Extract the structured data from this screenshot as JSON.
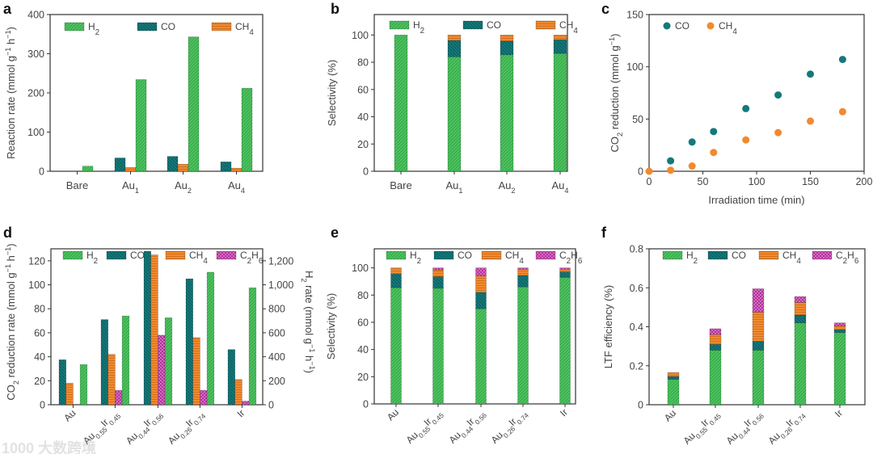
{
  "watermark": "1000 大数跨境",
  "colors": {
    "H2": "#4cc35e",
    "CO": "#13797a",
    "CH4": "#f28a2e",
    "C2H6": "#b3339d"
  },
  "chart_data": [
    {
      "panel": "a",
      "type": "bar",
      "mode": "grouped",
      "categories": [
        "Bare",
        "Au_{1}",
        "Au_{2}",
        "Au_{4}"
      ],
      "series": [
        {
          "name": "CO",
          "label": "CO",
          "values": [
            0,
            34,
            38,
            24
          ]
        },
        {
          "name": "CH4",
          "label": "CH_{4}",
          "values": [
            0,
            10,
            18,
            8
          ]
        },
        {
          "name": "H2",
          "label": "H_{2}",
          "values": [
            13,
            234,
            343,
            212
          ]
        }
      ],
      "legend_order": [
        "H2",
        "CO",
        "CH4"
      ],
      "xlabel": "",
      "ylabel": "Reaction rate (mmol g^{−1} h^{−1})",
      "ylim": [
        0,
        400
      ],
      "yticks": [
        "0",
        "100",
        "200",
        "300",
        "400"
      ],
      "ytick_values": [
        0,
        100,
        200,
        300,
        400
      ],
      "legend": "top"
    },
    {
      "panel": "b",
      "type": "bar",
      "mode": "stacked",
      "categories": [
        "Bare",
        "Au_{1}",
        "Au_{2}",
        "Au_{4}"
      ],
      "series": [
        {
          "name": "H2",
          "label": "H_{2}",
          "values": [
            100,
            84,
            85.5,
            86.5
          ]
        },
        {
          "name": "CO",
          "label": "CO",
          "values": [
            0,
            12,
            10,
            10
          ]
        },
        {
          "name": "CH4",
          "label": "CH_{4}",
          "values": [
            0,
            4,
            4.5,
            3.5
          ]
        }
      ],
      "legend_order": [
        "H2",
        "CO",
        "CH4"
      ],
      "xlabel": "",
      "ylabel": "Selectivity (%)",
      "ylim": [
        0,
        115
      ],
      "yticks": [
        "0",
        "20",
        "40",
        "60",
        "80",
        "100"
      ],
      "ytick_values": [
        0,
        20,
        40,
        60,
        80,
        100
      ],
      "legend": "top"
    },
    {
      "panel": "c",
      "type": "scatter",
      "series": [
        {
          "name": "CO",
          "label": "CO",
          "x": [
            20,
            40,
            60,
            90,
            120,
            150,
            180
          ],
          "y": [
            10,
            28,
            38,
            60,
            73,
            93,
            107
          ]
        },
        {
          "name": "CH4",
          "label": "CH_{4}",
          "x": [
            0,
            20,
            40,
            60,
            90,
            120,
            150,
            180
          ],
          "y": [
            0,
            1,
            5,
            18,
            30,
            37,
            48,
            57
          ]
        }
      ],
      "xlabel": "Irradiation time (min)",
      "ylabel": "CO_{2} reduction (mmol g^{−1})",
      "xlim": [
        0,
        200
      ],
      "xticks": [
        "0",
        "50",
        "100",
        "150",
        "200"
      ],
      "xtick_values": [
        0,
        50,
        100,
        150,
        200
      ],
      "ylim": [
        0,
        150
      ],
      "yticks": [
        "0",
        "50",
        "100",
        "150"
      ],
      "ytick_values": [
        0,
        50,
        100,
        150
      ],
      "legend": "top-left"
    },
    {
      "panel": "d",
      "type": "bar",
      "mode": "grouped",
      "categories": [
        "Au",
        "Au_{0.55}Ir_{0.45}",
        "Au_{0.44}Ir_{0.56}",
        "Au_{0.26}Ir_{0.74}",
        "Ir"
      ],
      "series": [
        {
          "name": "CO",
          "label": "CO",
          "values": [
            37.5,
            71,
            128,
            105,
            46
          ]
        },
        {
          "name": "CH4",
          "label": "CH_{4}",
          "values": [
            18,
            42,
            125,
            56,
            21
          ]
        },
        {
          "name": "C2H6",
          "label": "C_{2}H_{6}",
          "values": [
            0,
            12,
            58,
            12,
            3
          ]
        },
        {
          "name": "H2",
          "label": "H_{2}",
          "axis": "right",
          "values": [
            335,
            740,
            725,
            1105,
            975
          ]
        }
      ],
      "legend_order": [
        "H2",
        "CO",
        "CH4",
        "C2H6"
      ],
      "xlabel": "",
      "ylabel": "CO_{2} reduction rate (mmol g^{−1} h^{−1})",
      "ylim": [
        0,
        130
      ],
      "yticks": [
        "0",
        "20",
        "40",
        "60",
        "80",
        "100",
        "120"
      ],
      "ytick_values": [
        0,
        20,
        40,
        60,
        80,
        100,
        120
      ],
      "y2label": "H_{2} rate (mmol g^{−1} h^{−1})",
      "y2lim": [
        0,
        1300
      ],
      "y2ticks": [
        "0",
        "200",
        "400",
        "600",
        "800",
        "1,000",
        "1,200"
      ],
      "y2tick_values": [
        0,
        200,
        400,
        600,
        800,
        1000,
        1200
      ],
      "legend": "top"
    },
    {
      "panel": "e",
      "type": "bar",
      "mode": "stacked",
      "categories": [
        "Au",
        "Au_{0.55}Ir_{0.45}",
        "Au_{0.44}Ir_{0.56}",
        "Au_{0.26}Ir_{0.74}",
        "Ir"
      ],
      "series": [
        {
          "name": "H2",
          "label": "H_{2}",
          "values": [
            85.5,
            85,
            70,
            86,
            93
          ]
        },
        {
          "name": "CO",
          "label": "CO",
          "values": [
            10,
            8.5,
            12,
            8.5,
            4
          ]
        },
        {
          "name": "CH4",
          "label": "CH_{4}",
          "values": [
            4.5,
            5,
            12,
            4.5,
            2
          ]
        },
        {
          "name": "C2H6",
          "label": "C_{2}H_{6}",
          "values": [
            0,
            1.5,
            6,
            1,
            1
          ]
        }
      ],
      "legend_order": [
        "H2",
        "CO",
        "CH4",
        "C2H6"
      ],
      "xlabel": "",
      "ylabel": "Selectivity (%)",
      "ylim": [
        0,
        114
      ],
      "yticks": [
        "0",
        "20",
        "40",
        "60",
        "80",
        "100"
      ],
      "ytick_values": [
        0,
        20,
        40,
        60,
        80,
        100
      ],
      "legend": "top"
    },
    {
      "panel": "f",
      "type": "bar",
      "mode": "stacked",
      "categories": [
        "Au",
        "Au_{0.55}Ir_{0.45}",
        "Au_{0.44}Ir_{0.56}",
        "Au_{0.26}Ir_{0.74}",
        "Ir"
      ],
      "series": [
        {
          "name": "H2",
          "label": "H_{2}",
          "values": [
            0.13,
            0.28,
            0.28,
            0.42,
            0.37
          ]
        },
        {
          "name": "CO",
          "label": "CO",
          "values": [
            0.015,
            0.03,
            0.045,
            0.04,
            0.015
          ]
        },
        {
          "name": "CH4",
          "label": "CH_{4}",
          "values": [
            0.02,
            0.05,
            0.15,
            0.065,
            0.02
          ]
        },
        {
          "name": "C2H6",
          "label": "C_{2}H_{6}",
          "values": [
            0,
            0.03,
            0.12,
            0.03,
            0.015
          ]
        }
      ],
      "legend_order": [
        "H2",
        "CO",
        "CH4",
        "C2H6"
      ],
      "xlabel": "",
      "ylabel": "LTF efficiency (%)",
      "ylim": [
        0,
        0.8
      ],
      "yticks": [
        "0",
        "0.2",
        "0.4",
        "0.6",
        "0.8"
      ],
      "ytick_values": [
        0,
        0.2,
        0.4,
        0.6,
        0.8
      ],
      "legend": "top"
    }
  ]
}
